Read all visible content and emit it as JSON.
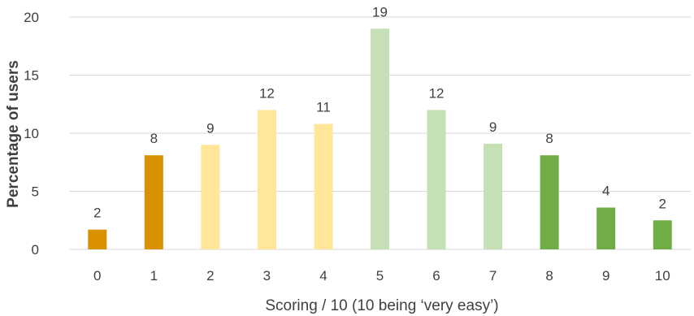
{
  "chart_data": {
    "type": "bar",
    "title": "",
    "xlabel": "Scoring / 10 (10 being ‘very easy’)",
    "ylabel": "Percentage of users",
    "categories": [
      "0",
      "1",
      "2",
      "3",
      "4",
      "5",
      "6",
      "7",
      "8",
      "9",
      "10"
    ],
    "values": [
      1.7,
      8.1,
      9.0,
      12.0,
      10.8,
      19.0,
      12.0,
      9.1,
      8.1,
      3.6,
      2.5
    ],
    "data_labels": [
      "2",
      "8",
      "9",
      "12",
      "11",
      "19",
      "12",
      "9",
      "8",
      "4",
      "2"
    ],
    "colors": [
      "#d99100",
      "#d99100",
      "#ffe699",
      "#ffe699",
      "#ffe699",
      "#c5e0b4",
      "#c5e0b4",
      "#c5e0b4",
      "#70ad47",
      "#70ad47",
      "#70ad47"
    ],
    "ylim": [
      0,
      20
    ],
    "yticks": [
      "0",
      "5",
      "10",
      "15",
      "20"
    ],
    "grid": true,
    "legend": "none"
  }
}
